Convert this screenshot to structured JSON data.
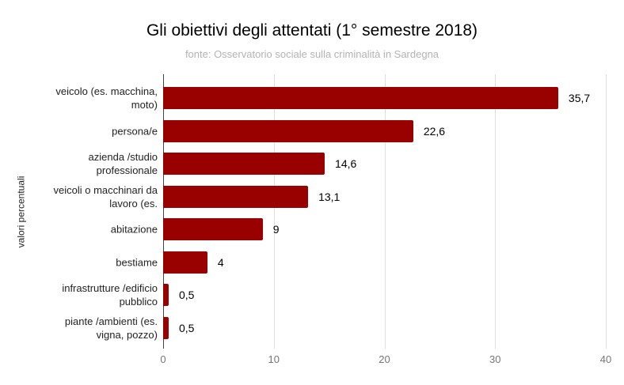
{
  "chart_data": {
    "type": "bar",
    "orientation": "horizontal",
    "title": "Gli obiettivi degli attentati (1° semestre 2018)",
    "subtitle": "fonte: Osservatorio sociale sulla criminalità in Sardegna",
    "ylabel": "valori percentuali",
    "xlabel": "",
    "xlim": [
      0,
      40
    ],
    "x_ticks": [
      0,
      10,
      20,
      30,
      40
    ],
    "grid": true,
    "legend_position": "none",
    "categories": [
      "veicolo (es. macchina, moto)",
      "persona/e",
      "azienda /studio professionale",
      "veicoli o macchinari da lavoro (es.",
      "abitazione",
      "bestiame",
      "infrastrutture /edificio pubblico",
      "piante /ambienti (es. vigna, pozzo)"
    ],
    "category_label_lines": [
      [
        "veicolo (es. macchina,",
        "moto)"
      ],
      [
        "persona/e"
      ],
      [
        "azienda /studio",
        "professionale"
      ],
      [
        "veicoli o macchinari da",
        "lavoro (es."
      ],
      [
        "abitazione"
      ],
      [
        "bestiame"
      ],
      [
        "infrastrutture /edificio",
        "pubblico"
      ],
      [
        "piante /ambienti (es.",
        "vigna, pozzo)"
      ]
    ],
    "values": [
      35.7,
      22.6,
      14.6,
      13.1,
      9,
      4,
      0.5,
      0.5
    ],
    "value_labels": [
      "35,7",
      "22,6",
      "14,6",
      "13,1",
      "9",
      "4",
      "0,5",
      "0,5"
    ]
  },
  "colors": {
    "bar": "#990000",
    "title": "#000000",
    "subtitle": "#b3b3b3",
    "category_label": "#222222",
    "value_label": "#000000",
    "axis_tick_label": "#757575",
    "gridline": "#e0e0e0",
    "axis_line": "#424242",
    "background": "#ffffff"
  }
}
